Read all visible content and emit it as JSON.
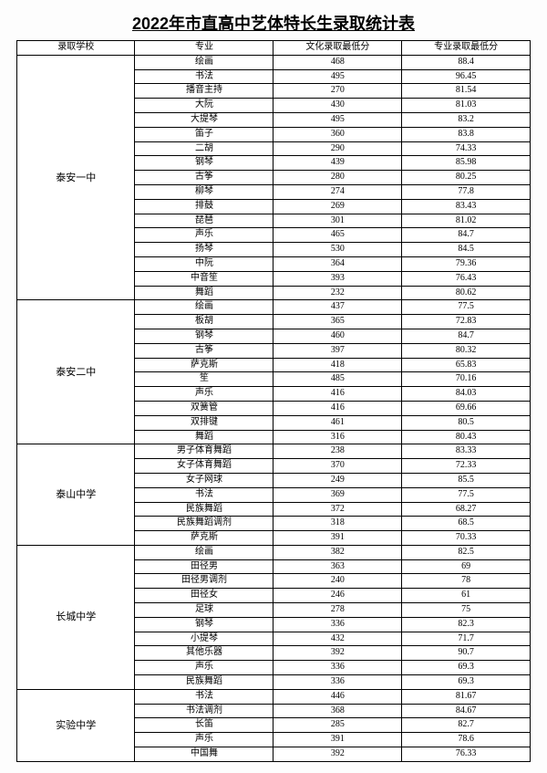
{
  "title": "2022年市直高中艺体特长生录取统计表",
  "columns": [
    "录取学校",
    "专业",
    "文化录取最低分",
    "专业录取最低分"
  ],
  "background_color": "#fdfdfd",
  "border_color": "#000000",
  "title_fontsize": 18,
  "cell_fontsize": 10,
  "schools": [
    {
      "name": "泰安一中",
      "rows": [
        [
          "绘画",
          "468",
          "88.4"
        ],
        [
          "书法",
          "495",
          "96.45"
        ],
        [
          "播音主持",
          "270",
          "81.54"
        ],
        [
          "大阮",
          "430",
          "81.03"
        ],
        [
          "大提琴",
          "495",
          "83.2"
        ],
        [
          "笛子",
          "360",
          "83.8"
        ],
        [
          "二胡",
          "290",
          "74.33"
        ],
        [
          "钢琴",
          "439",
          "85.98"
        ],
        [
          "古筝",
          "280",
          "80.25"
        ],
        [
          "柳琴",
          "274",
          "77.8"
        ],
        [
          "排鼓",
          "269",
          "83.43"
        ],
        [
          "琵琶",
          "301",
          "81.02"
        ],
        [
          "声乐",
          "465",
          "84.7"
        ],
        [
          "扬琴",
          "530",
          "84.5"
        ],
        [
          "中阮",
          "364",
          "79.36"
        ],
        [
          "中音笙",
          "393",
          "76.43"
        ],
        [
          "舞蹈",
          "232",
          "80.62"
        ]
      ]
    },
    {
      "name": "泰安二中",
      "rows": [
        [
          "绘画",
          "437",
          "77.5"
        ],
        [
          "板胡",
          "365",
          "72.83"
        ],
        [
          "钢琴",
          "460",
          "84.7"
        ],
        [
          "古筝",
          "397",
          "80.32"
        ],
        [
          "萨克斯",
          "418",
          "65.83"
        ],
        [
          "笙",
          "485",
          "70.16"
        ],
        [
          "声乐",
          "416",
          "84.03"
        ],
        [
          "双簧管",
          "416",
          "69.66"
        ],
        [
          "双排键",
          "461",
          "80.5"
        ],
        [
          "舞蹈",
          "316",
          "80.43"
        ]
      ]
    },
    {
      "name": "泰山中学",
      "rows": [
        [
          "男子体育舞蹈",
          "238",
          "83.33"
        ],
        [
          "女子体育舞蹈",
          "370",
          "72.33"
        ],
        [
          "女子网球",
          "249",
          "85.5"
        ],
        [
          "书法",
          "369",
          "77.5"
        ],
        [
          "民族舞蹈",
          "372",
          "68.27"
        ],
        [
          "民族舞蹈调剂",
          "318",
          "68.5"
        ],
        [
          "萨克斯",
          "391",
          "70.33"
        ]
      ]
    },
    {
      "name": "长城中学",
      "rows": [
        [
          "绘画",
          "382",
          "82.5"
        ],
        [
          "田径男",
          "363",
          "69"
        ],
        [
          "田径男调剂",
          "240",
          "78"
        ],
        [
          "田径女",
          "246",
          "61"
        ],
        [
          "足球",
          "278",
          "75"
        ],
        [
          "钢琴",
          "336",
          "82.3"
        ],
        [
          "小提琴",
          "432",
          "71.7"
        ],
        [
          "其他乐器",
          "392",
          "90.7"
        ],
        [
          "声乐",
          "336",
          "69.3"
        ],
        [
          "民族舞蹈",
          "336",
          "69.3"
        ]
      ]
    },
    {
      "name": "实验中学",
      "rows": [
        [
          "书法",
          "446",
          "81.67"
        ],
        [
          "书法调剂",
          "368",
          "84.67"
        ],
        [
          "长笛",
          "285",
          "82.7"
        ],
        [
          "声乐",
          "391",
          "78.6"
        ],
        [
          "中国舞",
          "392",
          "76.33"
        ]
      ]
    }
  ]
}
